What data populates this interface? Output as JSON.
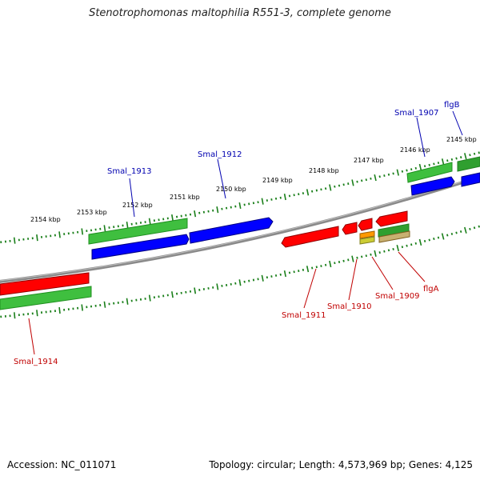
{
  "title": "Stenotrophomonas maltophilia R551-3, complete genome",
  "footer": {
    "accession": "Accession: NC_011071",
    "summary": "Topology: circular; Length: 4,573,969 bp; Genes: 4,125"
  },
  "colors": {
    "backbone": "#7a7a7a",
    "tick": "#1a7f1a",
    "label_forward": "#0000b0",
    "label_reverse": "#c00000",
    "cds_forward": "#0000ff",
    "cds_reverse": "#ff0000",
    "gene_forward": "#3fbf3f",
    "gene_reverse": "#2a9a2a"
  },
  "scale_labels": [
    "2145 kbp",
    "2146 kbp",
    "2147 kbp",
    "2148 kbp",
    "2149 kbp",
    "2150 kbp",
    "2151 kbp",
    "2152 kbp",
    "2153 kbp",
    "2154 kbp"
  ],
  "genes_top": [
    "Smal_1913",
    "Smal_1912",
    "Smal_1907",
    "flgB"
  ],
  "genes_bottom": [
    "Smal_1914",
    "Smal_1911",
    "Smal_1910",
    "Smal_1909",
    "flgA"
  ]
}
